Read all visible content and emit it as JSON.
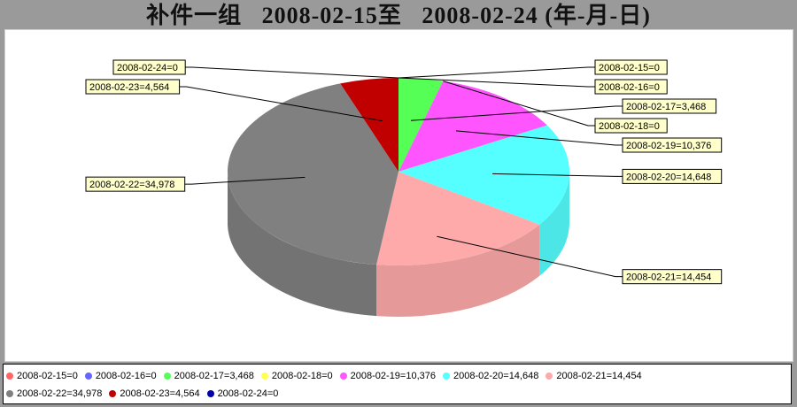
{
  "title": "补件一组   2008-02-15至   2008-02-24 (年-月-日)",
  "chart_data": {
    "type": "pie",
    "style": "3d",
    "title": "补件一组   2008-02-15至   2008-02-24 (年-月-日)",
    "slices": [
      {
        "date": "2008-02-15",
        "value": 0,
        "label": "2008-02-15=0",
        "color": "#ff6666"
      },
      {
        "date": "2008-02-16",
        "value": 0,
        "label": "2008-02-16=0",
        "color": "#6666ff"
      },
      {
        "date": "2008-02-17",
        "value": 3468,
        "label": "2008-02-17=3,468",
        "color": "#55ff55"
      },
      {
        "date": "2008-02-18",
        "value": 0,
        "label": "2008-02-18=0",
        "color": "#ffff55"
      },
      {
        "date": "2008-02-19",
        "value": 10376,
        "label": "2008-02-19=10,376",
        "color": "#ff55ff"
      },
      {
        "date": "2008-02-20",
        "value": 14648,
        "label": "2008-02-20=14,648",
        "color": "#55ffff"
      },
      {
        "date": "2008-02-21",
        "value": 14454,
        "label": "2008-02-21=14,454",
        "color": "#ffaaaa"
      },
      {
        "date": "2008-02-22",
        "value": 34978,
        "label": "2008-02-22=34,978",
        "color": "#808080"
      },
      {
        "date": "2008-02-23",
        "value": 4564,
        "label": "2008-02-23=4,564",
        "color": "#c00000"
      },
      {
        "date": "2008-02-24",
        "value": 0,
        "label": "2008-02-24=0",
        "color": "#0000aa"
      }
    ],
    "legend_placement": "bottom"
  }
}
